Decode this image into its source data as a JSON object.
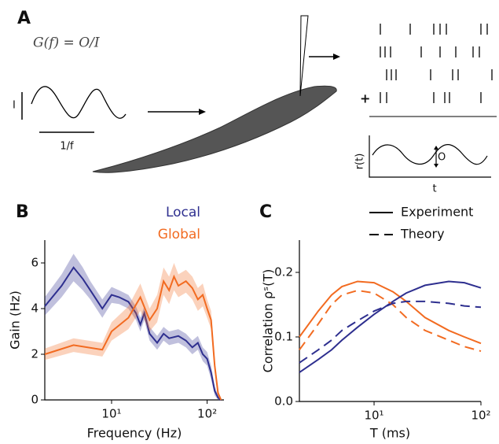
{
  "panel_a": {
    "label": "A",
    "equation": "G(f) = O/I",
    "input_amplitude": "I",
    "period": "1/f",
    "plus": "+",
    "rate_axis_y": "r(t)",
    "rate_axis_x": "t",
    "output_amplitude": "O"
  },
  "chart_data": [
    {
      "type": "line",
      "panel_label": "B",
      "x_label": "Frequency (Hz)",
      "y_label": "Gain (Hz)",
      "xscale": "log",
      "xlim": [
        2,
        150
      ],
      "ylim": [
        0,
        7
      ],
      "xticks": [
        {
          "value": 10,
          "label": "10¹"
        },
        {
          "value": 100,
          "label": "10²"
        }
      ],
      "yticks": [
        0,
        2,
        4,
        6
      ],
      "series": [
        {
          "name": "Local",
          "color": "#2e2f8f",
          "dash": "solid",
          "x": [
            2,
            3,
            4,
            5,
            6,
            8,
            10,
            12,
            15,
            18,
            20,
            22,
            25,
            30,
            35,
            40,
            50,
            60,
            70,
            80,
            90,
            100,
            110,
            120,
            130,
            140
          ],
          "values": [
            4.1,
            5.0,
            5.8,
            5.3,
            4.8,
            4.0,
            4.6,
            4.5,
            4.3,
            3.8,
            3.3,
            3.8,
            2.9,
            2.5,
            2.9,
            2.7,
            2.8,
            2.6,
            2.3,
            2.5,
            2.0,
            1.8,
            1.2,
            0.4,
            0.1,
            0
          ],
          "error": [
            0.4,
            0.5,
            0.6,
            0.5,
            0.4,
            0.4,
            0.35,
            0.3,
            0.3,
            0.3,
            0.3,
            0.3,
            0.3,
            0.3,
            0.3,
            0.3,
            0.3,
            0.3,
            0.3,
            0.3,
            0.3,
            0.3,
            0.3,
            0.2,
            0.1,
            0.05
          ]
        },
        {
          "name": "Global",
          "color": "#f26b21",
          "dash": "solid",
          "x": [
            2,
            4,
            8,
            10,
            15,
            20,
            25,
            30,
            35,
            40,
            45,
            50,
            60,
            70,
            80,
            90,
            100,
            110,
            120,
            130,
            140
          ],
          "values": [
            2.0,
            2.4,
            2.2,
            3.0,
            3.6,
            4.5,
            3.5,
            4.0,
            5.2,
            4.8,
            5.4,
            5.0,
            5.2,
            4.9,
            4.4,
            4.6,
            4.0,
            3.5,
            1.5,
            0.3,
            0
          ],
          "error": [
            0.25,
            0.3,
            0.3,
            0.4,
            0.5,
            0.6,
            0.5,
            0.6,
            0.6,
            0.6,
            0.6,
            0.5,
            0.5,
            0.5,
            0.5,
            0.5,
            0.4,
            0.4,
            0.3,
            0.15,
            0.05
          ]
        }
      ]
    },
    {
      "type": "line",
      "panel_label": "C",
      "x_label": "T (ms)",
      "y_label": "Correlation ρˢ(T)",
      "xscale": "log",
      "xlim": [
        2,
        100
      ],
      "ylim": [
        0,
        0.25
      ],
      "xticks": [
        {
          "value": 10,
          "label": "10¹"
        },
        {
          "value": 100,
          "label": "10²"
        }
      ],
      "yticks": [
        {
          "value": 0,
          "label": "0.0"
        },
        0.1,
        0.2
      ],
      "legend": [
        {
          "name": "Experiment",
          "dash": "solid"
        },
        {
          "name": "Theory",
          "dash": "dashed"
        }
      ],
      "series": [
        {
          "color": "#f26b21",
          "dash": "solid",
          "x": [
            2,
            3,
            4,
            5,
            7,
            10,
            15,
            20,
            30,
            50,
            70,
            100
          ],
          "values": [
            0.1,
            0.14,
            0.165,
            0.178,
            0.186,
            0.184,
            0.17,
            0.155,
            0.13,
            0.11,
            0.1,
            0.09
          ]
        },
        {
          "color": "#2e2f8f",
          "dash": "solid",
          "x": [
            2,
            3,
            4,
            5,
            7,
            10,
            15,
            20,
            30,
            50,
            70,
            100
          ],
          "values": [
            0.045,
            0.065,
            0.08,
            0.095,
            0.115,
            0.135,
            0.155,
            0.168,
            0.18,
            0.186,
            0.184,
            0.176
          ]
        },
        {
          "color": "#f26b21",
          "dash": "dashed",
          "x": [
            2,
            3,
            4,
            5,
            7,
            10,
            15,
            20,
            30,
            50,
            70,
            100
          ],
          "values": [
            0.08,
            0.12,
            0.15,
            0.165,
            0.172,
            0.168,
            0.15,
            0.13,
            0.11,
            0.095,
            0.085,
            0.078
          ]
        },
        {
          "color": "#2e2f8f",
          "dash": "dashed",
          "x": [
            2,
            3,
            4,
            5,
            7,
            10,
            15,
            20,
            30,
            50,
            70,
            100
          ],
          "values": [
            0.06,
            0.08,
            0.095,
            0.11,
            0.125,
            0.14,
            0.152,
            0.155,
            0.155,
            0.152,
            0.148,
            0.146
          ]
        }
      ]
    }
  ]
}
